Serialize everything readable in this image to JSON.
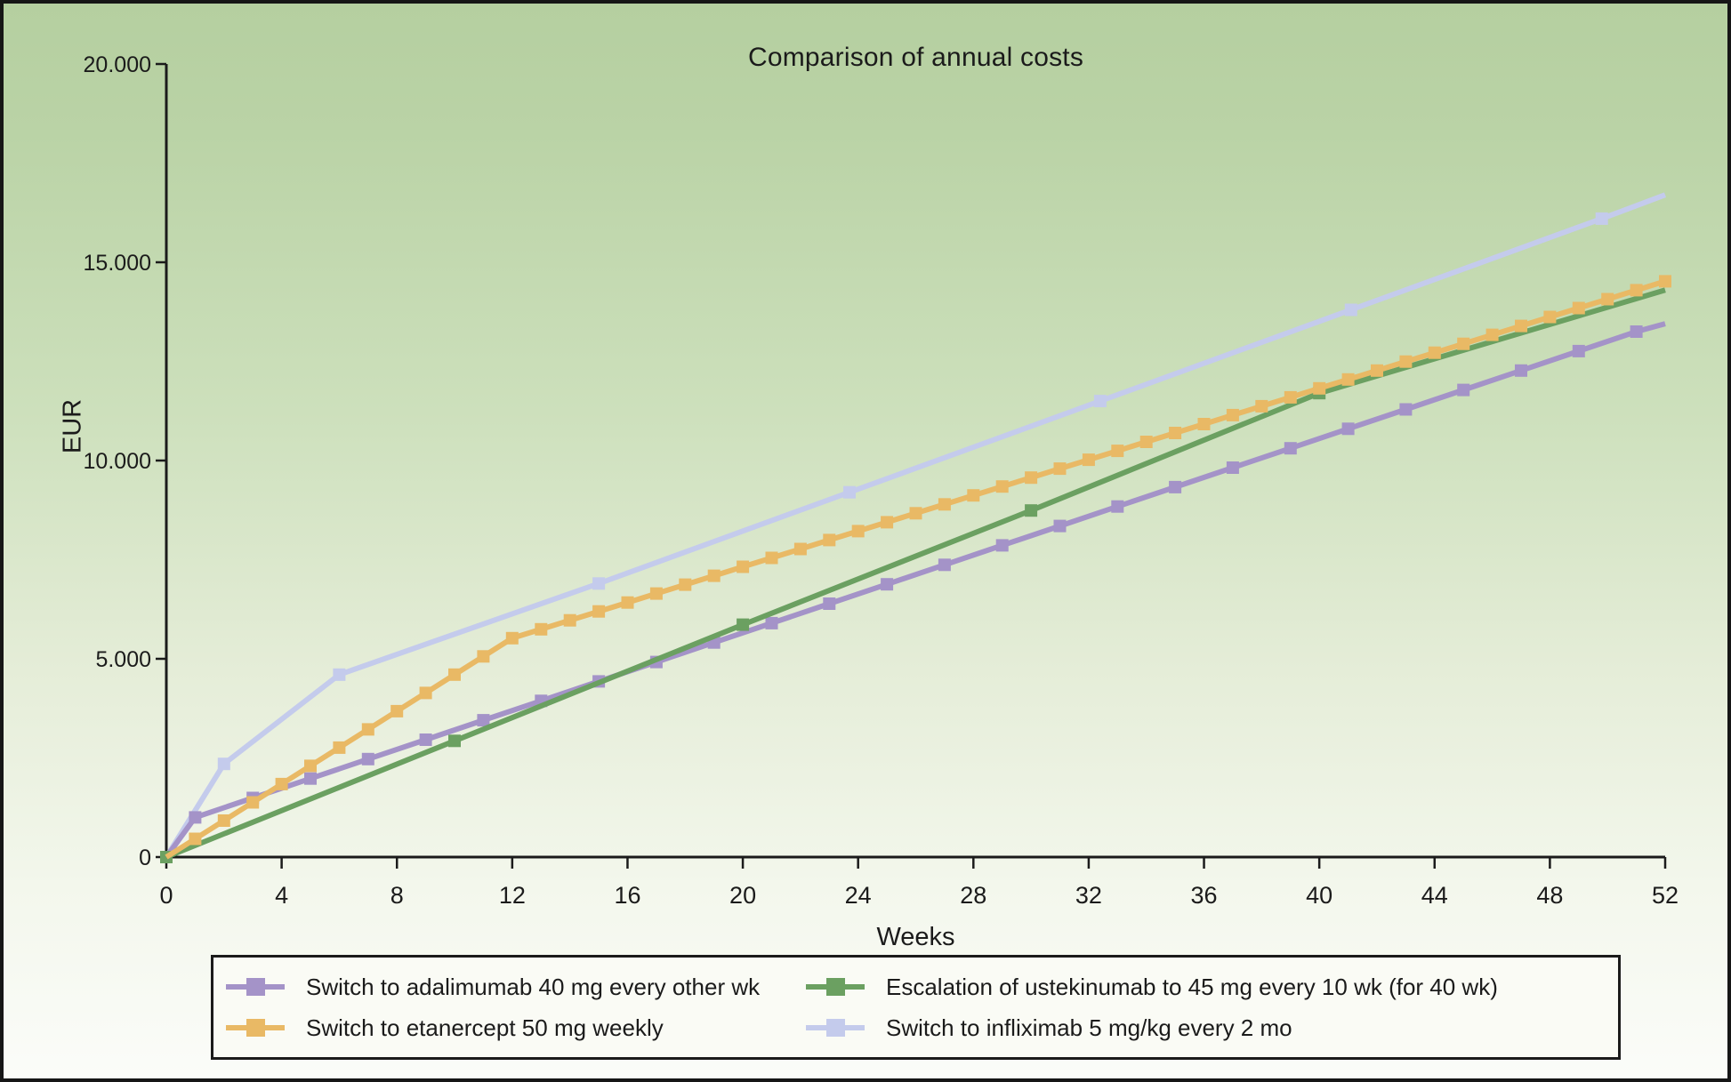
{
  "chart_data": {
    "type": "line",
    "title": "Comparison of annual costs",
    "xlabel": "Weeks",
    "ylabel": "EUR",
    "xlim": [
      0,
      52
    ],
    "ylim": [
      0,
      20000
    ],
    "grid": false,
    "legend_position": "bottom",
    "x_axis": {
      "ticks": [
        0,
        4,
        8,
        12,
        16,
        20,
        24,
        28,
        32,
        36,
        40,
        44,
        48,
        52
      ],
      "tick_labels": [
        "0",
        "4",
        "8",
        "12",
        "16",
        "20",
        "24",
        "28",
        "32",
        "36",
        "40",
        "44",
        "48",
        "52"
      ]
    },
    "y_axis": {
      "ticks": [
        0,
        5000,
        10000,
        15000,
        20000
      ],
      "tick_labels": [
        "0",
        "5.000",
        "10.000",
        "15.000",
        "20.000"
      ]
    },
    "series": [
      {
        "id": "adalimumab",
        "name": "Switch to adalimumab 40 mg every other wk",
        "color": "#a493c8",
        "marker": "square",
        "line": [
          [
            0,
            0
          ],
          [
            1,
            1000
          ],
          [
            3,
            1490
          ],
          [
            5,
            1980
          ],
          [
            7,
            2470
          ],
          [
            9,
            2960
          ],
          [
            11,
            3450
          ],
          [
            13,
            3940
          ],
          [
            15,
            4430
          ],
          [
            17,
            4920
          ],
          [
            19,
            5410
          ],
          [
            21,
            5900
          ],
          [
            23,
            6390
          ],
          [
            25,
            6880
          ],
          [
            27,
            7370
          ],
          [
            29,
            7860
          ],
          [
            31,
            8350
          ],
          [
            33,
            8840
          ],
          [
            35,
            9330
          ],
          [
            37,
            9820
          ],
          [
            39,
            10310
          ],
          [
            41,
            10800
          ],
          [
            43,
            11290
          ],
          [
            45,
            11780
          ],
          [
            47,
            12270
          ],
          [
            49,
            12760
          ],
          [
            51,
            13250
          ],
          [
            52,
            13450
          ]
        ],
        "marker_range": [
          1,
          27
        ]
      },
      {
        "id": "etanercept",
        "name": "Switch to etanercept 50 mg weekly",
        "color": "#e9b965",
        "marker": "square",
        "line": [
          [
            0,
            0
          ],
          [
            1,
            460
          ],
          [
            2,
            920
          ],
          [
            3,
            1380
          ],
          [
            4,
            1840
          ],
          [
            5,
            2300
          ],
          [
            6,
            2760
          ],
          [
            7,
            3220
          ],
          [
            8,
            3680
          ],
          [
            9,
            4140
          ],
          [
            10,
            4600
          ],
          [
            11,
            5060
          ],
          [
            12,
            5520
          ],
          [
            13,
            5745
          ],
          [
            14,
            5970
          ],
          [
            15,
            6195
          ],
          [
            16,
            6420
          ],
          [
            17,
            6645
          ],
          [
            18,
            6870
          ],
          [
            19,
            7095
          ],
          [
            20,
            7320
          ],
          [
            21,
            7545
          ],
          [
            22,
            7770
          ],
          [
            23,
            7995
          ],
          [
            24,
            8220
          ],
          [
            25,
            8445
          ],
          [
            26,
            8670
          ],
          [
            27,
            8895
          ],
          [
            28,
            9120
          ],
          [
            29,
            9345
          ],
          [
            30,
            9570
          ],
          [
            31,
            9795
          ],
          [
            32,
            10020
          ],
          [
            33,
            10245
          ],
          [
            34,
            10470
          ],
          [
            35,
            10695
          ],
          [
            36,
            10920
          ],
          [
            37,
            11145
          ],
          [
            38,
            11370
          ],
          [
            39,
            11595
          ],
          [
            40,
            11820
          ],
          [
            41,
            12045
          ],
          [
            42,
            12270
          ],
          [
            43,
            12495
          ],
          [
            44,
            12720
          ],
          [
            45,
            12945
          ],
          [
            46,
            13170
          ],
          [
            47,
            13395
          ],
          [
            48,
            13620
          ],
          [
            49,
            13845
          ],
          [
            50,
            14070
          ],
          [
            51,
            14295
          ],
          [
            52,
            14520
          ]
        ],
        "marker_range": [
          1,
          53
        ]
      },
      {
        "id": "ustekinumab",
        "name": "Escalation of ustekinumab to 45 mg every 10 wk (for 40 wk)",
        "color": "#6ba061",
        "marker": "square",
        "line": [
          [
            0,
            0
          ],
          [
            10,
            2930
          ],
          [
            20,
            5860
          ],
          [
            30,
            8740
          ],
          [
            40,
            11700
          ],
          [
            52,
            14300
          ]
        ],
        "marker_range": [
          0,
          5
        ]
      },
      {
        "id": "infliximab",
        "name": "Switch to infliximab 5 mg/kg every 2 mo",
        "color": "#c4cbec",
        "marker": "square",
        "line": [
          [
            0,
            0
          ],
          [
            2,
            2350
          ],
          [
            6,
            4600
          ],
          [
            15,
            6900
          ],
          [
            23.7,
            9200
          ],
          [
            32.4,
            11500
          ],
          [
            41.1,
            13800
          ],
          [
            49.8,
            16100
          ],
          [
            52,
            16700
          ]
        ],
        "marker_range": [
          1,
          8
        ]
      }
    ]
  }
}
